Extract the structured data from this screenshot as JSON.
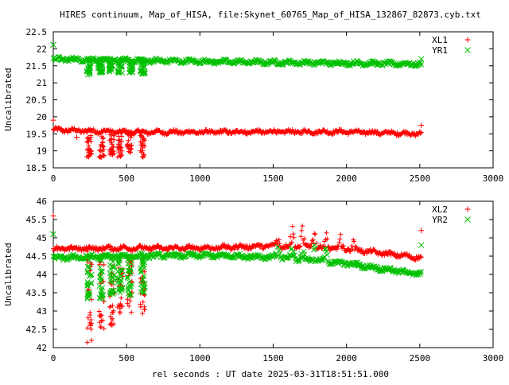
{
  "title": "HIRES continuum, Map_of_HISA, file:Skynet_60765_Map_of_HISA_132867_82873.cyb.txt",
  "xlabel": "rel seconds : UT date 2025-03-31T18:51:51.000",
  "chart_data": [
    {
      "type": "scatter",
      "panel": "top",
      "ylabel": "Uncalibrated",
      "xlim": [
        0,
        3000
      ],
      "ylim": [
        18.5,
        22.5
      ],
      "x_ticks": [
        0,
        500,
        1000,
        1500,
        2000,
        2500,
        3000
      ],
      "y_ticks": [
        18.5,
        19,
        19.5,
        20,
        20.5,
        21,
        21.5,
        22,
        22.5
      ],
      "legend_position": "top-right",
      "series": [
        {
          "name": "XL1",
          "marker": "+",
          "color": "#ff0000",
          "x_range": [
            0,
            2510
          ],
          "baseline": [
            [
              0,
              19.62
            ],
            [
              500,
              19.55
            ],
            [
              1000,
              19.55
            ],
            [
              1500,
              19.56
            ],
            [
              2000,
              19.56
            ],
            [
              2510,
              19.5
            ]
          ],
          "dips": [
            [
              245,
              18.75
            ],
            [
              330,
              18.8
            ],
            [
              400,
              18.85
            ],
            [
              455,
              18.8
            ],
            [
              520,
              18.9
            ],
            [
              610,
              18.8
            ]
          ],
          "outliers": [
            [
              0,
              19.9
            ],
            [
              160,
              19.4
            ],
            [
              2510,
              19.75
            ]
          ]
        },
        {
          "name": "YR1",
          "marker": "x",
          "color": "#00c000",
          "x_range": [
            0,
            2510
          ],
          "baseline": [
            [
              0,
              21.7
            ],
            [
              500,
              21.66
            ],
            [
              1000,
              21.63
            ],
            [
              1500,
              21.6
            ],
            [
              2000,
              21.58
            ],
            [
              2510,
              21.55
            ]
          ],
          "dips": [
            [
              240,
              21.2
            ],
            [
              320,
              21.25
            ],
            [
              390,
              21.3
            ],
            [
              455,
              21.25
            ],
            [
              530,
              21.3
            ],
            [
              610,
              21.25
            ]
          ],
          "outliers": [
            [
              0,
              22.12
            ],
            [
              2510,
              21.7
            ]
          ]
        }
      ]
    },
    {
      "type": "scatter",
      "panel": "bottom",
      "ylabel": "Uncalibrated",
      "xlim": [
        0,
        3000
      ],
      "ylim": [
        42,
        46
      ],
      "x_ticks": [
        0,
        500,
        1000,
        1500,
        2000,
        2500,
        3000
      ],
      "y_ticks": [
        42,
        42.5,
        43,
        43.5,
        44,
        44.5,
        45,
        45.5,
        46
      ],
      "legend_position": "top-right",
      "series": [
        {
          "name": "XL2",
          "marker": "+",
          "color": "#ff0000",
          "x_range": [
            0,
            2510
          ],
          "baseline": [
            [
              0,
              44.7
            ],
            [
              500,
              44.72
            ],
            [
              1000,
              44.72
            ],
            [
              1500,
              44.78
            ],
            [
              2000,
              44.7
            ],
            [
              2510,
              44.45
            ]
          ],
          "dips": [
            [
              245,
              42.1
            ],
            [
              330,
              42.5
            ],
            [
              400,
              42.6
            ],
            [
              455,
              42.9
            ],
            [
              520,
              42.8
            ],
            [
              610,
              42.9
            ]
          ],
          "bumps": [
            [
              1530,
              45.2
            ],
            [
              1630,
              45.45
            ],
            [
              1700,
              45.5
            ],
            [
              1780,
              45.45
            ],
            [
              1860,
              45.3
            ],
            [
              1960,
              45.05
            ],
            [
              2050,
              44.95
            ]
          ],
          "outliers": [
            [
              0,
              45.6
            ],
            [
              2510,
              45.2
            ]
          ]
        },
        {
          "name": "YR2",
          "marker": "x",
          "color": "#00c000",
          "x_range": [
            0,
            2510
          ],
          "baseline": [
            [
              0,
              44.45
            ],
            [
              500,
              44.5
            ],
            [
              1000,
              44.52
            ],
            [
              1500,
              44.48
            ],
            [
              2000,
              44.3
            ],
            [
              2510,
              44.0
            ]
          ],
          "dips": [
            [
              245,
              43.3
            ],
            [
              330,
              43.3
            ],
            [
              400,
              43.4
            ],
            [
              455,
              43.5
            ],
            [
              520,
              43.4
            ],
            [
              610,
              43.5
            ]
          ],
          "bumps": [
            [
              1530,
              44.9
            ],
            [
              1630,
              44.95
            ],
            [
              1700,
              44.95
            ],
            [
              1780,
              44.9
            ],
            [
              1860,
              44.8
            ]
          ],
          "outliers": [
            [
              0,
              45.1
            ],
            [
              2510,
              44.8
            ]
          ]
        }
      ]
    }
  ]
}
